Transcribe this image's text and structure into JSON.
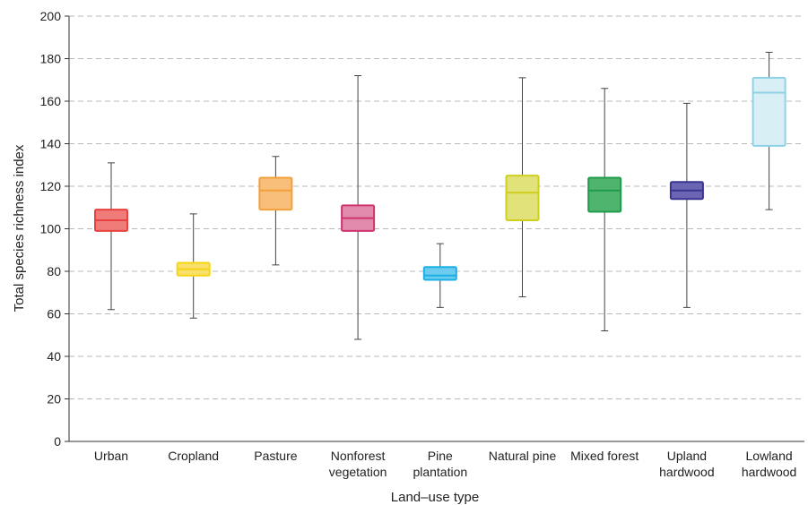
{
  "chart_data": {
    "type": "boxplot",
    "xlabel": "Land–use type",
    "ylabel": "Total species richness index",
    "ylim": [
      0,
      200
    ],
    "yticks": [
      "0",
      "20",
      "40",
      "60",
      "80",
      "100",
      "120",
      "140",
      "160",
      "180",
      "200"
    ],
    "grid": "horizontal dashed",
    "categories": [
      {
        "label": [
          "Urban"
        ],
        "min": 62,
        "q1": 99,
        "median": 104,
        "q3": 109,
        "max": 131,
        "color": "#e8413f",
        "fill": "#f07c7a"
      },
      {
        "label": [
          "Cropland"
        ],
        "min": 58,
        "q1": 78,
        "median": 81,
        "q3": 84,
        "max": 107,
        "color": "#f5d516",
        "fill": "#f8e06a"
      },
      {
        "label": [
          "Pasture"
        ],
        "min": 83,
        "q1": 109,
        "median": 118,
        "q3": 124,
        "max": 134,
        "color": "#f3a03a",
        "fill": "#f7bf7a"
      },
      {
        "label": [
          "Nonforest",
          "vegetation"
        ],
        "min": 48,
        "q1": 99,
        "median": 105,
        "q3": 111,
        "max": 172,
        "color": "#d0336e",
        "fill": "#e08aac"
      },
      {
        "label": [
          "Pine",
          "plantation"
        ],
        "min": 63,
        "q1": 76,
        "median": 78,
        "q3": 82,
        "max": 93,
        "color": "#1ab0e6",
        "fill": "#6dcbef"
      },
      {
        "label": [
          "Natural pine"
        ],
        "min": 68,
        "q1": 104,
        "median": 117,
        "q3": 125,
        "max": 171,
        "color": "#cfcf1f",
        "fill": "#e1e27a"
      },
      {
        "label": [
          "Mixed forest"
        ],
        "min": 52,
        "q1": 108,
        "median": 118,
        "q3": 124,
        "max": 166,
        "color": "#219a4a",
        "fill": "#4fb56e"
      },
      {
        "label": [
          "Upland",
          "hardwood"
        ],
        "min": 63,
        "q1": 114,
        "median": 118,
        "q3": 122,
        "max": 159,
        "color": "#3a3590",
        "fill": "#6a66b4"
      },
      {
        "label": [
          "Lowland",
          "hardwood"
        ],
        "min": 109,
        "q1": 139,
        "median": 164,
        "q3": 171,
        "max": 183,
        "color": "#8fd2e6",
        "fill": "#d8eff6"
      }
    ]
  }
}
